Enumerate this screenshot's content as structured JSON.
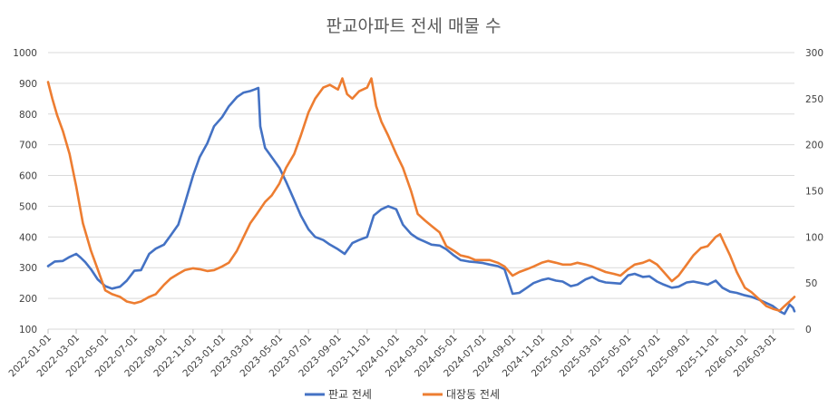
{
  "chart_data": {
    "type": "line",
    "title": "판교아파트 전세 매물 수",
    "x_start": "2022-01-01",
    "x_end": "2026-04-15",
    "x_ticks": [
      "2022-01-01",
      "2022-03-01",
      "2022-05-01",
      "2022-07-01",
      "2022-09-01",
      "2022-11-01",
      "2023-01-01",
      "2023-03-01",
      "2023-05-01",
      "2023-07-01",
      "2023-09-01",
      "2023-11-01",
      "2024-01-01",
      "2024-03-01",
      "2024-05-01",
      "2024-07-01",
      "2024-09-01",
      "2024-11-01",
      "2025-01-01",
      "2025-03-01",
      "2025-05-01",
      "2025-07-01",
      "2025-09-01",
      "2025-11-01",
      "2026-01-01",
      "2026-03-01"
    ],
    "y_left": {
      "min": 100,
      "max": 1000,
      "ticks": [
        100,
        200,
        300,
        400,
        500,
        600,
        700,
        800,
        900,
        1000
      ]
    },
    "y_right": {
      "min": 0,
      "max": 300,
      "ticks": [
        0,
        50,
        100,
        150,
        200,
        250,
        300
      ]
    },
    "legend_position": "bottom",
    "grid": true,
    "series": [
      {
        "name": "판교 전세",
        "axis": "left",
        "color": "#4472C4",
        "points": [
          [
            "2022-01-01",
            305
          ],
          [
            "2022-01-15",
            320
          ],
          [
            "2022-02-01",
            322
          ],
          [
            "2022-02-15",
            335
          ],
          [
            "2022-03-01",
            345
          ],
          [
            "2022-03-10",
            333
          ],
          [
            "2022-03-20",
            318
          ],
          [
            "2022-04-01",
            295
          ],
          [
            "2022-04-15",
            262
          ],
          [
            "2022-05-01",
            240
          ],
          [
            "2022-05-15",
            232
          ],
          [
            "2022-06-01",
            238
          ],
          [
            "2022-06-15",
            258
          ],
          [
            "2022-07-01",
            290
          ],
          [
            "2022-07-15",
            292
          ],
          [
            "2022-08-01",
            345
          ],
          [
            "2022-08-15",
            362
          ],
          [
            "2022-09-01",
            375
          ],
          [
            "2022-09-15",
            405
          ],
          [
            "2022-10-01",
            440
          ],
          [
            "2022-10-15",
            510
          ],
          [
            "2022-11-01",
            600
          ],
          [
            "2022-11-15",
            660
          ],
          [
            "2022-12-01",
            705
          ],
          [
            "2022-12-15",
            760
          ],
          [
            "2023-01-01",
            790
          ],
          [
            "2023-01-15",
            825
          ],
          [
            "2023-02-01",
            855
          ],
          [
            "2023-02-15",
            870
          ],
          [
            "2023-03-01",
            875
          ],
          [
            "2023-03-10",
            880
          ],
          [
            "2023-03-18",
            885
          ],
          [
            "2023-03-22",
            760
          ],
          [
            "2023-04-01",
            690
          ],
          [
            "2023-04-15",
            660
          ],
          [
            "2023-05-01",
            625
          ],
          [
            "2023-05-15",
            580
          ],
          [
            "2023-06-01",
            520
          ],
          [
            "2023-06-15",
            470
          ],
          [
            "2023-07-01",
            425
          ],
          [
            "2023-07-15",
            400
          ],
          [
            "2023-08-01",
            390
          ],
          [
            "2023-08-15",
            375
          ],
          [
            "2023-09-01",
            360
          ],
          [
            "2023-09-15",
            345
          ],
          [
            "2023-10-01",
            380
          ],
          [
            "2023-10-15",
            390
          ],
          [
            "2023-11-01",
            400
          ],
          [
            "2023-11-15",
            470
          ],
          [
            "2023-12-01",
            490
          ],
          [
            "2023-12-15",
            500
          ],
          [
            "2024-01-01",
            490
          ],
          [
            "2024-01-15",
            440
          ],
          [
            "2024-02-01",
            410
          ],
          [
            "2024-02-15",
            395
          ],
          [
            "2024-03-01",
            385
          ],
          [
            "2024-03-15",
            375
          ],
          [
            "2024-04-01",
            372
          ],
          [
            "2024-04-15",
            360
          ],
          [
            "2024-05-01",
            340
          ],
          [
            "2024-05-15",
            325
          ],
          [
            "2024-06-01",
            320
          ],
          [
            "2024-06-15",
            318
          ],
          [
            "2024-07-01",
            315
          ],
          [
            "2024-07-15",
            310
          ],
          [
            "2024-08-01",
            305
          ],
          [
            "2024-08-15",
            295
          ],
          [
            "2024-09-01",
            215
          ],
          [
            "2024-09-15",
            218
          ],
          [
            "2024-10-01",
            235
          ],
          [
            "2024-10-15",
            250
          ],
          [
            "2024-11-01",
            260
          ],
          [
            "2024-11-15",
            265
          ],
          [
            "2024-12-01",
            258
          ],
          [
            "2024-12-15",
            255
          ],
          [
            "2025-01-01",
            240
          ],
          [
            "2025-01-15",
            245
          ],
          [
            "2025-02-01",
            262
          ],
          [
            "2025-02-15",
            270
          ],
          [
            "2025-03-01",
            258
          ],
          [
            "2025-03-15",
            252
          ],
          [
            "2025-04-01",
            250
          ],
          [
            "2025-04-15",
            248
          ],
          [
            "2025-05-01",
            275
          ],
          [
            "2025-05-15",
            280
          ],
          [
            "2025-06-01",
            270
          ],
          [
            "2025-06-15",
            272
          ],
          [
            "2025-07-01",
            255
          ],
          [
            "2025-07-15",
            245
          ],
          [
            "2025-08-01",
            235
          ],
          [
            "2025-08-15",
            238
          ],
          [
            "2025-09-01",
            252
          ],
          [
            "2025-09-15",
            255
          ],
          [
            "2025-10-01",
            250
          ],
          [
            "2025-10-15",
            245
          ],
          [
            "2025-11-01",
            258
          ],
          [
            "2025-11-15",
            235
          ],
          [
            "2025-12-01",
            222
          ],
          [
            "2025-12-15",
            218
          ],
          [
            "2026-01-01",
            210
          ],
          [
            "2026-01-15",
            205
          ],
          [
            "2026-02-01",
            195
          ],
          [
            "2026-02-15",
            185
          ],
          [
            "2026-03-01",
            175
          ],
          [
            "2026-03-15",
            158
          ],
          [
            "2026-03-25",
            150
          ],
          [
            "2026-04-05",
            180
          ],
          [
            "2026-04-12",
            170
          ],
          [
            "2026-04-15",
            158
          ]
        ]
      },
      {
        "name": "대장동 전세",
        "axis": "right",
        "color": "#ED7D31",
        "points": [
          [
            "2022-01-01",
            268
          ],
          [
            "2022-01-10",
            250
          ],
          [
            "2022-01-20",
            232
          ],
          [
            "2022-02-01",
            215
          ],
          [
            "2022-02-15",
            190
          ],
          [
            "2022-03-01",
            155
          ],
          [
            "2022-03-15",
            115
          ],
          [
            "2022-04-01",
            85
          ],
          [
            "2022-04-15",
            65
          ],
          [
            "2022-05-01",
            42
          ],
          [
            "2022-05-15",
            38
          ],
          [
            "2022-06-01",
            35
          ],
          [
            "2022-06-15",
            30
          ],
          [
            "2022-07-01",
            28
          ],
          [
            "2022-07-15",
            30
          ],
          [
            "2022-08-01",
            35
          ],
          [
            "2022-08-15",
            38
          ],
          [
            "2022-09-01",
            48
          ],
          [
            "2022-09-15",
            55
          ],
          [
            "2022-10-01",
            60
          ],
          [
            "2022-10-15",
            64
          ],
          [
            "2022-11-01",
            66
          ],
          [
            "2022-11-15",
            65
          ],
          [
            "2022-12-01",
            63
          ],
          [
            "2022-12-15",
            64
          ],
          [
            "2023-01-01",
            68
          ],
          [
            "2023-01-15",
            72
          ],
          [
            "2023-02-01",
            85
          ],
          [
            "2023-02-15",
            100
          ],
          [
            "2023-03-01",
            115
          ],
          [
            "2023-03-15",
            125
          ],
          [
            "2023-04-01",
            138
          ],
          [
            "2023-04-15",
            145
          ],
          [
            "2023-05-01",
            158
          ],
          [
            "2023-05-15",
            175
          ],
          [
            "2023-06-01",
            190
          ],
          [
            "2023-06-15",
            210
          ],
          [
            "2023-07-01",
            235
          ],
          [
            "2023-07-15",
            250
          ],
          [
            "2023-08-01",
            262
          ],
          [
            "2023-08-15",
            265
          ],
          [
            "2023-09-01",
            260
          ],
          [
            "2023-09-10",
            272
          ],
          [
            "2023-09-20",
            255
          ],
          [
            "2023-10-01",
            250
          ],
          [
            "2023-10-15",
            258
          ],
          [
            "2023-11-01",
            262
          ],
          [
            "2023-11-10",
            272
          ],
          [
            "2023-11-20",
            242
          ],
          [
            "2023-12-01",
            225
          ],
          [
            "2023-12-15",
            210
          ],
          [
            "2024-01-01",
            190
          ],
          [
            "2024-01-15",
            175
          ],
          [
            "2024-02-01",
            150
          ],
          [
            "2024-02-15",
            125
          ],
          [
            "2024-03-01",
            118
          ],
          [
            "2024-03-15",
            112
          ],
          [
            "2024-04-01",
            105
          ],
          [
            "2024-04-15",
            90
          ],
          [
            "2024-05-01",
            85
          ],
          [
            "2024-05-15",
            80
          ],
          [
            "2024-06-01",
            78
          ],
          [
            "2024-06-15",
            75
          ],
          [
            "2024-07-01",
            75
          ],
          [
            "2024-07-15",
            75
          ],
          [
            "2024-08-01",
            72
          ],
          [
            "2024-08-15",
            68
          ],
          [
            "2024-09-01",
            58
          ],
          [
            "2024-09-15",
            62
          ],
          [
            "2024-10-01",
            65
          ],
          [
            "2024-10-15",
            68
          ],
          [
            "2024-11-01",
            72
          ],
          [
            "2024-11-15",
            74
          ],
          [
            "2024-12-01",
            72
          ],
          [
            "2024-12-15",
            70
          ],
          [
            "2025-01-01",
            70
          ],
          [
            "2025-01-15",
            72
          ],
          [
            "2025-02-01",
            70
          ],
          [
            "2025-02-15",
            68
          ],
          [
            "2025-03-01",
            65
          ],
          [
            "2025-03-15",
            62
          ],
          [
            "2025-04-01",
            60
          ],
          [
            "2025-04-15",
            58
          ],
          [
            "2025-05-01",
            65
          ],
          [
            "2025-05-15",
            70
          ],
          [
            "2025-06-01",
            72
          ],
          [
            "2025-06-15",
            75
          ],
          [
            "2025-07-01",
            70
          ],
          [
            "2025-07-15",
            62
          ],
          [
            "2025-08-01",
            52
          ],
          [
            "2025-08-15",
            58
          ],
          [
            "2025-09-01",
            70
          ],
          [
            "2025-09-15",
            80
          ],
          [
            "2025-10-01",
            88
          ],
          [
            "2025-10-15",
            90
          ],
          [
            "2025-11-01",
            100
          ],
          [
            "2025-11-10",
            103
          ],
          [
            "2025-11-20",
            92
          ],
          [
            "2025-12-01",
            80
          ],
          [
            "2025-12-15",
            62
          ],
          [
            "2026-01-01",
            45
          ],
          [
            "2026-01-15",
            40
          ],
          [
            "2026-02-01",
            32
          ],
          [
            "2026-02-15",
            25
          ],
          [
            "2026-03-01",
            22
          ],
          [
            "2026-03-15",
            20
          ],
          [
            "2026-03-25",
            25
          ],
          [
            "2026-04-05",
            30
          ],
          [
            "2026-04-15",
            35
          ]
        ]
      }
    ]
  }
}
